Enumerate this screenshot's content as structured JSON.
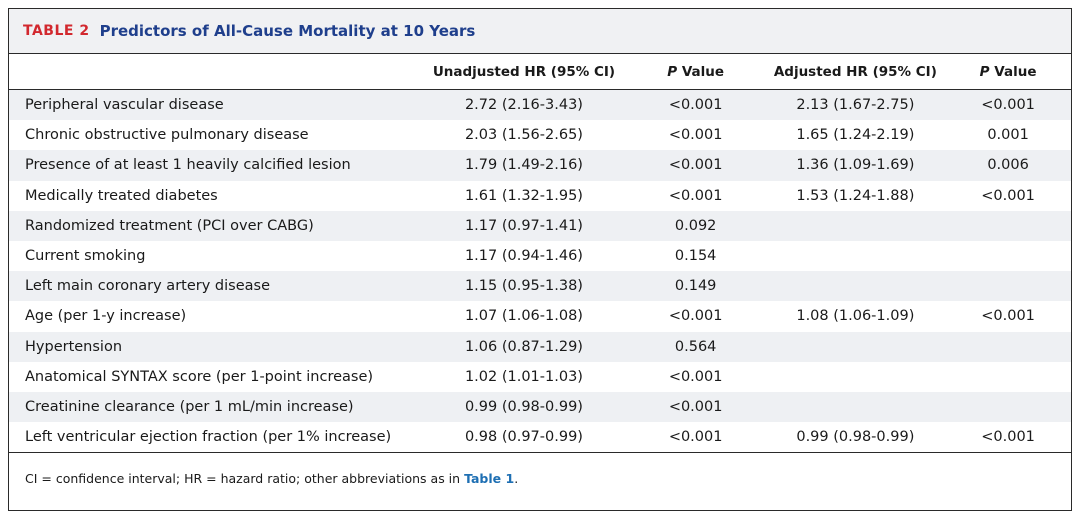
{
  "table": {
    "label": "TABLE 2",
    "title": "Predictors of All-Cause Mortality at 10 Years",
    "headers": {
      "predictor": "",
      "unadjusted": "Unadjusted HR (95% CI)",
      "p_italic": "P",
      "p_rest": " Value",
      "adjusted": "Adjusted HR (95% CI)",
      "p2_italic": "P",
      "p2_rest": " Value"
    },
    "rows": [
      {
        "label": "Peripheral vascular disease",
        "unadj": "2.72 (2.16-3.43)",
        "p1": "<0.001",
        "adj": "2.13 (1.67-2.75)",
        "p2": "<0.001"
      },
      {
        "label": "Chronic obstructive pulmonary disease",
        "unadj": "2.03 (1.56-2.65)",
        "p1": "<0.001",
        "adj": "1.65 (1.24-2.19)",
        "p2": "0.001"
      },
      {
        "label": "Presence of at least 1 heavily calcified lesion",
        "unadj": "1.79 (1.49-2.16)",
        "p1": "<0.001",
        "adj": "1.36 (1.09-1.69)",
        "p2": "0.006"
      },
      {
        "label": "Medically treated diabetes",
        "unadj": "1.61 (1.32-1.95)",
        "p1": "<0.001",
        "adj": "1.53 (1.24-1.88)",
        "p2": "<0.001"
      },
      {
        "label": "Randomized treatment (PCI over CABG)",
        "unadj": "1.17 (0.97-1.41)",
        "p1": "0.092",
        "adj": "",
        "p2": ""
      },
      {
        "label": "Current smoking",
        "unadj": "1.17 (0.94-1.46)",
        "p1": "0.154",
        "adj": "",
        "p2": ""
      },
      {
        "label": "Left main coronary artery disease",
        "unadj": "1.15 (0.95-1.38)",
        "p1": "0.149",
        "adj": "",
        "p2": ""
      },
      {
        "label": "Age (per 1-y increase)",
        "unadj": "1.07 (1.06-1.08)",
        "p1": "<0.001",
        "adj": "1.08 (1.06-1.09)",
        "p2": "<0.001"
      },
      {
        "label": "Hypertension",
        "unadj": "1.06 (0.87-1.29)",
        "p1": "0.564",
        "adj": "",
        "p2": ""
      },
      {
        "label": "Anatomical SYNTAX score (per 1-point increase)",
        "unadj": "1.02 (1.01-1.03)",
        "p1": "<0.001",
        "adj": "",
        "p2": ""
      },
      {
        "label": "Creatinine clearance (per 1 mL/min increase)",
        "unadj": "0.99 (0.98-0.99)",
        "p1": "<0.001",
        "adj": "",
        "p2": ""
      },
      {
        "label": "Left ventricular ejection fraction (per 1% increase)",
        "unadj": "0.98 (0.97-0.99)",
        "p1": "<0.001",
        "adj": "0.99 (0.98-0.99)",
        "p2": "<0.001"
      }
    ],
    "footnote": {
      "text": "CI = confidence interval; HR = hazard ratio; other abbreviations as in ",
      "ref": "Table 1",
      "end": "."
    },
    "colors": {
      "label_red": "#d2282e",
      "title_blue": "#1f3f8c",
      "stripe": "#eef0f3",
      "link_blue": "#1e6fb3"
    }
  }
}
